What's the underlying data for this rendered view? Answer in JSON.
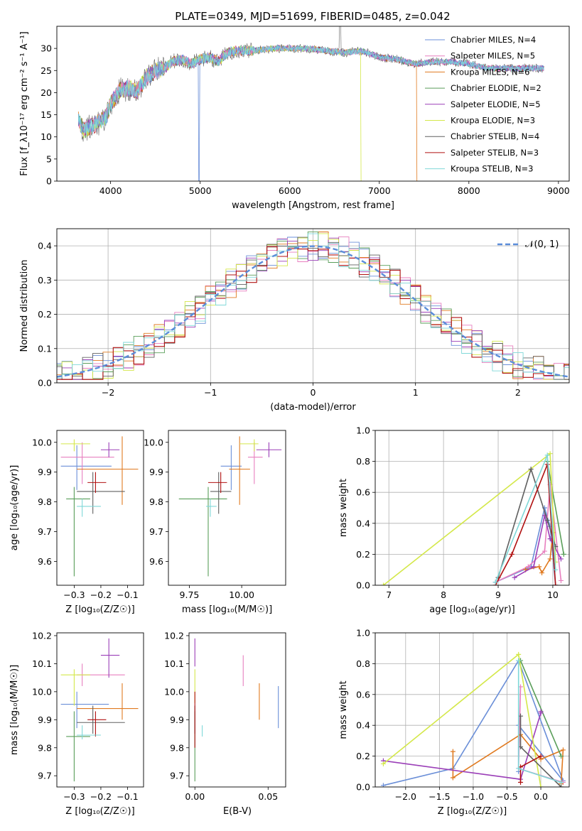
{
  "figure": {
    "title": "PLATE=0349, MJD=51699, FIBERID=0485, z=0.042"
  },
  "colors": [
    "#6b8fd8",
    "#e87fbf",
    "#e07a20",
    "#5a9e5a",
    "#9b3fb8",
    "#d4e84a",
    "#606060",
    "#b01010",
    "#7fd8d8"
  ],
  "chart_data": [
    {
      "id": "spectrum",
      "type": "line",
      "xlabel": "wavelength [Angstrom, rest frame]",
      "ylabel": "Flux [f_λ10⁻¹⁷ erg cm⁻² s⁻¹ A⁻¹]",
      "xlim": [
        3400,
        9120
      ],
      "ylim": [
        0,
        35
      ],
      "xticks": [
        "4000",
        "5000",
        "6000",
        "7000",
        "8000",
        "9000"
      ],
      "yticks": [
        "0",
        "5",
        "10",
        "15",
        "20",
        "25",
        "30"
      ],
      "grid": false,
      "legend_position": "top-right",
      "series": [
        {
          "name": "Chabrier MILES, N_SSP=4",
          "start": 3640,
          "end": 8840,
          "dip": 4985
        },
        {
          "name": "Salpeter MILES, N_SSP=5",
          "start": 3640,
          "end": 8840
        },
        {
          "name": "Kroupa MILES, N_SSP=6",
          "start": 3640,
          "end": 7420,
          "dip": 7420
        },
        {
          "name": "Chabrier ELODIE, N_SSP=2",
          "start": 3640,
          "end": 8840
        },
        {
          "name": "Salpeter ELODIE, N_SSP=5",
          "start": 3640,
          "end": 8840
        },
        {
          "name": "Kroupa ELODIE, N_SSP=3",
          "start": 3640,
          "end": 6800,
          "dip": 6800
        },
        {
          "name": "Chabrier STELIB, N_SSP=4",
          "start": 3640,
          "end": 8840,
          "spike": 6560
        },
        {
          "name": "Salpeter STELIB, N_SSP=3",
          "start": 3640,
          "end": 8840
        },
        {
          "name": "Kroupa STELIB, N_SSP=3",
          "start": 3640,
          "end": 8840
        }
      ],
      "continuum": [
        [
          3640,
          13.8
        ],
        [
          3700,
          11.5
        ],
        [
          3850,
          13
        ],
        [
          3950,
          14.5
        ],
        [
          4000,
          17.5
        ],
        [
          4100,
          20.5
        ],
        [
          4200,
          21
        ],
        [
          4300,
          20.5
        ],
        [
          4400,
          23.5
        ],
        [
          4500,
          25
        ],
        [
          4600,
          25.5
        ],
        [
          4700,
          27
        ],
        [
          4800,
          27.5
        ],
        [
          4900,
          26.5
        ],
        [
          5000,
          27.5
        ],
        [
          5100,
          28
        ],
        [
          5200,
          27
        ],
        [
          5300,
          29
        ],
        [
          5400,
          29.5
        ],
        [
          5500,
          29.5
        ],
        [
          5600,
          29.5
        ],
        [
          5800,
          30
        ],
        [
          6000,
          30
        ],
        [
          6200,
          30
        ],
        [
          6400,
          29.5
        ],
        [
          6600,
          29
        ],
        [
          6800,
          29.5
        ],
        [
          7000,
          28
        ],
        [
          7200,
          27.5
        ],
        [
          7400,
          26.5
        ],
        [
          7600,
          27
        ],
        [
          7800,
          27
        ],
        [
          8000,
          26.5
        ],
        [
          8200,
          25.5
        ],
        [
          8400,
          25.5
        ],
        [
          8600,
          25.5
        ],
        [
          8840,
          25.5
        ]
      ]
    },
    {
      "id": "residuals",
      "type": "histogram",
      "xlabel": "(data-model)/error",
      "ylabel": "Normed distribution",
      "xlim": [
        -2.5,
        2.5
      ],
      "ylim": [
        0,
        0.45
      ],
      "xticks": [
        "−2",
        "−1",
        "0",
        "1",
        "2"
      ],
      "yticks": [
        "0.0",
        "0.1",
        "0.2",
        "0.3",
        "0.4"
      ],
      "grid": true,
      "legend": [
        {
          "name": "𝒩(0, 1)"
        }
      ],
      "bin_width": 0.1,
      "reference_curve": "normal(0,1)"
    },
    {
      "id": "age_vs_Z",
      "type": "errorbar",
      "xlabel": "Z [log₁₀(Z/Z☉)]",
      "ylabel": "age  [log₁₀(age/yr)]",
      "xlim": [
        -0.365,
        -0.04
      ],
      "ylim": [
        9.52,
        10.04
      ],
      "xticks": [
        [
          "-0.3",
          "−0.3"
        ],
        [
          "-0.2",
          "−0.2"
        ],
        [
          "-0.1",
          "−0.1"
        ]
      ],
      "yticks": [
        "9.6",
        "9.7",
        "9.8",
        "9.9",
        "10.0"
      ],
      "points": [
        {
          "c": 0,
          "x": -0.29,
          "xl": -0.35,
          "xh": -0.16,
          "y": 9.92,
          "yl": 9.84,
          "yh": 9.99
        },
        {
          "c": 1,
          "x": -0.27,
          "xl": -0.35,
          "xh": -0.15,
          "y": 9.95,
          "yl": 9.86,
          "yh": 10.0
        },
        {
          "c": 2,
          "x": -0.12,
          "xl": -0.29,
          "xh": -0.06,
          "y": 9.91,
          "yl": 9.79,
          "yh": 10.02
        },
        {
          "c": 3,
          "x": -0.3,
          "xl": -0.33,
          "xh": -0.24,
          "y": 9.81,
          "yl": 9.55,
          "yh": 9.85
        },
        {
          "c": 4,
          "x": -0.17,
          "xl": -0.2,
          "xh": -0.13,
          "y": 9.975,
          "yl": 9.95,
          "yh": 10.0
        },
        {
          "c": 5,
          "x": -0.3,
          "xl": -0.35,
          "xh": -0.24,
          "y": 9.995,
          "yl": 9.97,
          "yh": 10.01
        },
        {
          "c": 6,
          "x": -0.23,
          "xl": -0.29,
          "xh": -0.11,
          "y": 9.835,
          "yl": 9.76,
          "yh": 9.9
        },
        {
          "c": 7,
          "x": -0.22,
          "xl": -0.25,
          "xh": -0.18,
          "y": 9.865,
          "yl": 9.83,
          "yh": 9.9
        },
        {
          "c": 8,
          "x": -0.27,
          "xl": -0.29,
          "xh": -0.2,
          "y": 9.785,
          "yl": 9.75,
          "yh": 9.81
        }
      ]
    },
    {
      "id": "age_vs_mass",
      "type": "errorbar",
      "xlabel": "mass [log₁₀(M/M☉)]",
      "ylabel": "",
      "xlim": [
        9.65,
        10.21
      ],
      "ylim": [
        9.52,
        10.04
      ],
      "xticks": [
        [
          "9.75",
          "9.75"
        ],
        [
          "10.0",
          "10.00"
        ]
      ],
      "yticks": [
        "9.6",
        "9.7",
        "9.8",
        "9.9",
        "10.0"
      ],
      "points": [
        {
          "c": 0,
          "x": 9.95,
          "xl": 9.9,
          "xh": 10.0,
          "y": 9.92,
          "yl": 9.84,
          "yh": 9.99
        },
        {
          "c": 1,
          "x": 10.06,
          "xl": 10.03,
          "xh": 10.1,
          "y": 9.95,
          "yl": 9.86,
          "yh": 10.0
        },
        {
          "c": 2,
          "x": 9.99,
          "xl": 9.94,
          "xh": 10.04,
          "y": 9.91,
          "yl": 9.79,
          "yh": 10.02
        },
        {
          "c": 3,
          "x": 9.84,
          "xl": 9.7,
          "xh": 9.93,
          "y": 9.81,
          "yl": 9.55,
          "yh": 9.85
        },
        {
          "c": 4,
          "x": 10.13,
          "xl": 10.07,
          "xh": 10.19,
          "y": 9.975,
          "yl": 9.95,
          "yh": 10.0
        },
        {
          "c": 5,
          "x": 10.06,
          "xl": 9.99,
          "xh": 10.08,
          "y": 9.995,
          "yl": 9.97,
          "yh": 10.01
        },
        {
          "c": 6,
          "x": 9.89,
          "xl": 9.85,
          "xh": 9.95,
          "y": 9.835,
          "yl": 9.76,
          "yh": 9.9
        },
        {
          "c": 7,
          "x": 9.9,
          "xl": 9.84,
          "xh": 9.93,
          "y": 9.865,
          "yl": 9.83,
          "yh": 9.9
        },
        {
          "c": 8,
          "x": 9.85,
          "xl": 9.83,
          "xh": 9.88,
          "y": 9.785,
          "yl": 9.75,
          "yh": 9.81
        }
      ]
    },
    {
      "id": "weights_vs_age",
      "type": "line",
      "xlabel": "age  [log₁₀(age/yr)]",
      "ylabel": "mass weight",
      "xlim": [
        6.75,
        10.3
      ],
      "ylim": [
        0,
        1
      ],
      "xticks": [
        "7",
        "8",
        "9",
        "10"
      ],
      "yticks": [
        "0.0",
        "0.2",
        "0.4",
        "0.6",
        "0.8",
        "1.0"
      ],
      "grid": true,
      "series": [
        {
          "c": 0,
          "x": [
            8.95,
            9.6,
            9.85,
            9.95,
            10.05
          ],
          "y": [
            0.02,
            0.12,
            0.5,
            0.38,
            0.0
          ]
        },
        {
          "c": 1,
          "x": [
            8.95,
            9.55,
            9.85,
            9.95,
            10.15
          ],
          "y": [
            0.02,
            0.12,
            0.22,
            0.65,
            0.03
          ]
        },
        {
          "c": 2,
          "x": [
            9.5,
            9.75,
            9.8,
            9.95,
            10.0
          ],
          "y": [
            0.1,
            0.12,
            0.08,
            0.17,
            0.34
          ]
        },
        {
          "c": 3,
          "x": [
            9.9,
            10.2
          ],
          "y": [
            0.8,
            0.2
          ]
        },
        {
          "c": 4,
          "x": [
            9.3,
            9.65,
            9.85,
            9.95,
            10.15
          ],
          "y": [
            0.05,
            0.12,
            0.45,
            0.3,
            0.17
          ]
        },
        {
          "c": 5,
          "x": [
            6.9,
            9.95,
            10.05
          ],
          "y": [
            0.0,
            0.85,
            0.15
          ]
        },
        {
          "c": 6,
          "x": [
            9.0,
            9.6,
            9.9,
            10.05
          ],
          "y": [
            0.05,
            0.75,
            0.42,
            0.25
          ]
        },
        {
          "c": 7,
          "x": [
            8.95,
            9.25,
            9.9,
            10.05
          ],
          "y": [
            0.0,
            0.2,
            0.78,
            0.0
          ]
        },
        {
          "c": 8,
          "x": [
            8.95,
            9.9,
            10.05
          ],
          "y": [
            0.02,
            0.84,
            0.1
          ]
        }
      ]
    },
    {
      "id": "mass_vs_Z",
      "type": "errorbar",
      "xlabel": "Z [log₁₀(Z/Z☉)]",
      "ylabel": "mass [log₁₀(M/M☉)]",
      "xlim": [
        -0.365,
        -0.04
      ],
      "ylim": [
        9.66,
        10.21
      ],
      "xticks": [
        [
          "-0.3",
          "−0.3"
        ],
        [
          "-0.2",
          "−0.2"
        ],
        [
          "-0.1",
          "−0.1"
        ]
      ],
      "yticks": [
        "9.7",
        "9.8",
        "9.9",
        "10.0",
        "10.1",
        "10.2"
      ],
      "points": [
        {
          "c": 0,
          "x": -0.29,
          "xl": -0.35,
          "xh": -0.17,
          "y": 9.955,
          "yl": 9.87,
          "yh": 10.0
        },
        {
          "c": 1,
          "x": -0.27,
          "xl": -0.29,
          "xh": -0.11,
          "y": 10.06,
          "yl": 10.02,
          "yh": 10.1
        },
        {
          "c": 2,
          "x": -0.12,
          "xl": -0.29,
          "xh": -0.06,
          "y": 9.94,
          "yl": 9.9,
          "yh": 10.03
        },
        {
          "c": 3,
          "x": -0.3,
          "xl": -0.33,
          "xh": -0.24,
          "y": 9.84,
          "yl": 9.68,
          "yh": 9.93
        },
        {
          "c": 4,
          "x": -0.17,
          "xl": -0.2,
          "xh": -0.13,
          "y": 10.13,
          "yl": 10.05,
          "yh": 10.19
        },
        {
          "c": 5,
          "x": -0.3,
          "xl": -0.35,
          "xh": -0.24,
          "y": 10.06,
          "yl": 9.95,
          "yh": 10.08
        },
        {
          "c": 6,
          "x": -0.23,
          "xl": -0.29,
          "xh": -0.11,
          "y": 9.89,
          "yl": 9.85,
          "yh": 9.95
        },
        {
          "c": 7,
          "x": -0.22,
          "xl": -0.25,
          "xh": -0.18,
          "y": 9.9,
          "yl": 9.84,
          "yh": 9.93
        },
        {
          "c": 8,
          "x": -0.27,
          "xl": -0.29,
          "xh": -0.2,
          "y": 9.845,
          "yl": 9.83,
          "yh": 9.88
        }
      ]
    },
    {
      "id": "mass_vs_ebv",
      "type": "errorbar",
      "xlabel": "E(B-V)",
      "ylabel": "",
      "xlim": [
        -0.004,
        0.062
      ],
      "ylim": [
        9.66,
        10.21
      ],
      "xticks": [
        "0.00",
        "0.05"
      ],
      "yticks": [
        "9.7",
        "9.8",
        "9.9",
        "10.0",
        "10.1",
        "10.2"
      ],
      "points": [
        {
          "c": 0,
          "x": 0.057,
          "y": 9.955,
          "yl": 9.87,
          "yh": 10.02
        },
        {
          "c": 1,
          "x": 0.033,
          "y": 10.06,
          "yl": 10.02,
          "yh": 10.13
        },
        {
          "c": 2,
          "x": 0.044,
          "y": 9.94,
          "yl": 9.9,
          "yh": 10.03
        },
        {
          "c": 3,
          "x": 0.0,
          "y": 9.84,
          "yl": 9.68,
          "yh": 9.93
        },
        {
          "c": 4,
          "x": 0.0,
          "y": 10.13,
          "yl": 10.09,
          "yh": 10.19
        },
        {
          "c": 5,
          "x": 0.0,
          "y": 10.06,
          "yl": 9.96,
          "yh": 10.08
        },
        {
          "c": 6,
          "x": 0.0,
          "y": 9.89,
          "yl": 9.85,
          "yh": 9.95
        },
        {
          "c": 7,
          "x": 0.0,
          "y": 9.9,
          "yl": 9.8,
          "yh": 10.0
        },
        {
          "c": 8,
          "x": 0.005,
          "y": 9.86,
          "yl": 9.84,
          "yh": 9.88
        }
      ]
    },
    {
      "id": "weights_vs_Z",
      "type": "line",
      "xlabel": "Z [log₁₀(Z/Z☉)]",
      "ylabel": "mass weight",
      "xlim": [
        -2.45,
        0.42
      ],
      "ylim": [
        0,
        1
      ],
      "xticks": [
        [
          "-2.0",
          "−2.0"
        ],
        [
          "-1.5",
          "−1.5"
        ],
        [
          "-1.0",
          "−1.0"
        ],
        [
          "-0.5",
          "−0.5"
        ],
        [
          "0.0",
          "0.0"
        ]
      ],
      "yticks": [
        "0.0",
        "0.2",
        "0.4",
        "0.6",
        "0.8",
        "1.0"
      ],
      "grid": true,
      "series": [
        {
          "c": 0,
          "x": [
            -2.33,
            -1.3,
            -0.33,
            0.33,
            -0.33,
            -0.33
          ],
          "y": [
            0.01,
            0.12,
            0.82,
            0.04,
            0.4,
            0.1
          ]
        },
        {
          "c": 1,
          "x": [
            -0.3,
            -0.33,
            0.33
          ],
          "y": [
            0.65,
            0.12,
            0.03
          ]
        },
        {
          "c": 2,
          "x": [
            -1.3,
            -1.3,
            -0.3,
            0.0,
            0.33,
            0.3
          ],
          "y": [
            0.23,
            0.06,
            0.34,
            0.18,
            0.24,
            0.02
          ]
        },
        {
          "c": 3,
          "x": [
            -0.3,
            0.3
          ],
          "y": [
            0.82,
            0.2
          ]
        },
        {
          "c": 4,
          "x": [
            -2.33,
            -0.3,
            0.0,
            0.0
          ],
          "y": [
            0.17,
            0.05,
            0.48,
            0.49
          ]
        },
        {
          "c": 5,
          "x": [
            -2.33,
            -0.33,
            -0.0
          ],
          "y": [
            0.15,
            0.86,
            0.0
          ]
        },
        {
          "c": 6,
          "x": [
            -0.3,
            -0.3,
            0.3
          ],
          "y": [
            0.46,
            0.26,
            0.0
          ]
        },
        {
          "c": 7,
          "x": [
            -0.3,
            -0.3,
            0.0
          ],
          "y": [
            0.03,
            0.13,
            0.2
          ]
        },
        {
          "c": 8,
          "x": [
            -0.33,
            -0.33,
            0.3
          ],
          "y": [
            0.82,
            0.12,
            0.03
          ]
        }
      ]
    }
  ]
}
